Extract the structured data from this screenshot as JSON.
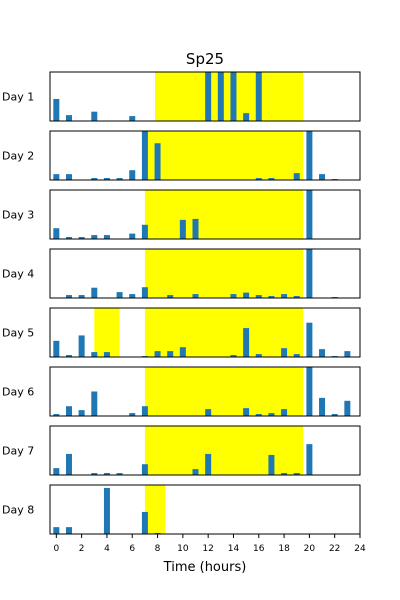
{
  "chart_data": {
    "type": "bar",
    "title": "Sp25",
    "xlabel": "Time (hours)",
    "xlim": [
      -0.5,
      24
    ],
    "xticks": [
      0,
      2,
      4,
      6,
      8,
      10,
      12,
      14,
      16,
      18,
      20,
      22,
      24
    ],
    "bar_color": "#1f77b4",
    "highlight_color": "#ffff00",
    "panels": [
      {
        "label": "Day 1",
        "highlight": [
          [
            7.8,
            19.5
          ]
        ],
        "x": [
          0,
          1,
          2,
          3,
          4,
          5,
          6,
          7,
          8,
          9,
          10,
          11,
          12,
          13,
          14,
          15,
          16,
          17,
          18,
          19,
          20,
          21,
          22,
          23
        ],
        "values": [
          0.45,
          0.12,
          0,
          0.19,
          0,
          0,
          0.1,
          0,
          0,
          0,
          0,
          0,
          1,
          1,
          1,
          0.16,
          1,
          0,
          0,
          0,
          0,
          0,
          0,
          0
        ]
      },
      {
        "label": "Day 2",
        "highlight": [
          [
            7.2,
            19.5
          ]
        ],
        "x": [
          0,
          1,
          2,
          3,
          4,
          5,
          6,
          7,
          8,
          9,
          10,
          11,
          12,
          13,
          14,
          15,
          16,
          17,
          18,
          19,
          20,
          21,
          22,
          23
        ],
        "values": [
          0.12,
          0.12,
          0,
          0.04,
          0.04,
          0.04,
          0.2,
          1,
          0.75,
          0,
          0,
          0,
          0,
          0,
          0,
          0,
          0.04,
          0.04,
          0,
          0.14,
          1,
          0.12,
          0.02,
          0
        ]
      },
      {
        "label": "Day 3",
        "highlight": [
          [
            7.0,
            19.5
          ]
        ],
        "x": [
          0,
          1,
          2,
          3,
          4,
          5,
          6,
          7,
          8,
          9,
          10,
          11,
          12,
          13,
          14,
          15,
          16,
          17,
          18,
          19,
          20,
          21,
          22,
          23
        ],
        "values": [
          0.22,
          0.04,
          0.04,
          0.08,
          0.08,
          0,
          0.11,
          0.29,
          0,
          0,
          0.39,
          0.41,
          0,
          0,
          0,
          0,
          0,
          0,
          0,
          0,
          1,
          0,
          0,
          0
        ]
      },
      {
        "label": "Day 4",
        "highlight": [
          [
            7.0,
            19.5
          ]
        ],
        "x": [
          0,
          1,
          2,
          3,
          4,
          5,
          6,
          7,
          8,
          9,
          10,
          11,
          12,
          13,
          14,
          15,
          16,
          17,
          18,
          19,
          20,
          21,
          22,
          23
        ],
        "values": [
          0,
          0.06,
          0.06,
          0.21,
          0,
          0.12,
          0.08,
          0.22,
          0,
          0.06,
          0,
          0.08,
          0,
          0,
          0.08,
          0.11,
          0.06,
          0.04,
          0.08,
          0.04,
          1,
          0,
          0.02,
          0
        ]
      },
      {
        "label": "Day 5",
        "highlight": [
          [
            3.0,
            5.0
          ],
          [
            7.0,
            19.5
          ]
        ],
        "x": [
          0,
          1,
          2,
          3,
          4,
          5,
          6,
          7,
          8,
          9,
          10,
          11,
          12,
          13,
          14,
          15,
          16,
          17,
          18,
          19,
          20,
          21,
          22,
          23
        ],
        "values": [
          0.33,
          0.04,
          0.44,
          0.1,
          0.1,
          0,
          0,
          0.02,
          0.12,
          0.12,
          0.2,
          0,
          0,
          0,
          0.04,
          0.59,
          0.06,
          0,
          0.18,
          0.06,
          0.7,
          0.16,
          0.02,
          0.12
        ]
      },
      {
        "label": "Day 6",
        "highlight": [
          [
            7.0,
            19.5
          ]
        ],
        "x": [
          0,
          1,
          2,
          3,
          4,
          5,
          6,
          7,
          8,
          9,
          10,
          11,
          12,
          13,
          14,
          15,
          16,
          17,
          18,
          19,
          20,
          21,
          22,
          23
        ],
        "values": [
          0.04,
          0.2,
          0.12,
          0.5,
          0,
          0,
          0.06,
          0.2,
          0,
          0,
          0,
          0,
          0.14,
          0,
          0,
          0.16,
          0.04,
          0.06,
          0.14,
          0,
          1,
          0.37,
          0.04,
          0.31
        ]
      },
      {
        "label": "Day 7",
        "highlight": [
          [
            7.0,
            19.5
          ]
        ],
        "x": [
          0,
          1,
          2,
          3,
          4,
          5,
          6,
          7,
          8,
          9,
          10,
          11,
          12,
          13,
          14,
          15,
          16,
          17,
          18,
          19,
          20,
          21,
          22,
          23
        ],
        "values": [
          0.14,
          0.43,
          0,
          0.04,
          0.04,
          0.04,
          0,
          0.22,
          0,
          0,
          0,
          0.12,
          0.43,
          0,
          0,
          0,
          0,
          0.41,
          0.04,
          0.04,
          0.63,
          0,
          0,
          0
        ]
      },
      {
        "label": "Day 8",
        "highlight": [
          [
            7.0,
            8.6
          ]
        ],
        "x": [
          0,
          1,
          2,
          3,
          4,
          5,
          6,
          7,
          8,
          9,
          10,
          11,
          12,
          13,
          14,
          15,
          16,
          17,
          18,
          19,
          20,
          21,
          22,
          23
        ],
        "values": [
          0.14,
          0.14,
          0,
          0,
          0.94,
          0,
          0,
          0.45,
          0.02,
          0,
          0,
          0,
          0,
          0,
          0,
          0,
          0,
          0,
          0,
          0,
          0,
          0,
          0,
          0
        ]
      }
    ]
  }
}
